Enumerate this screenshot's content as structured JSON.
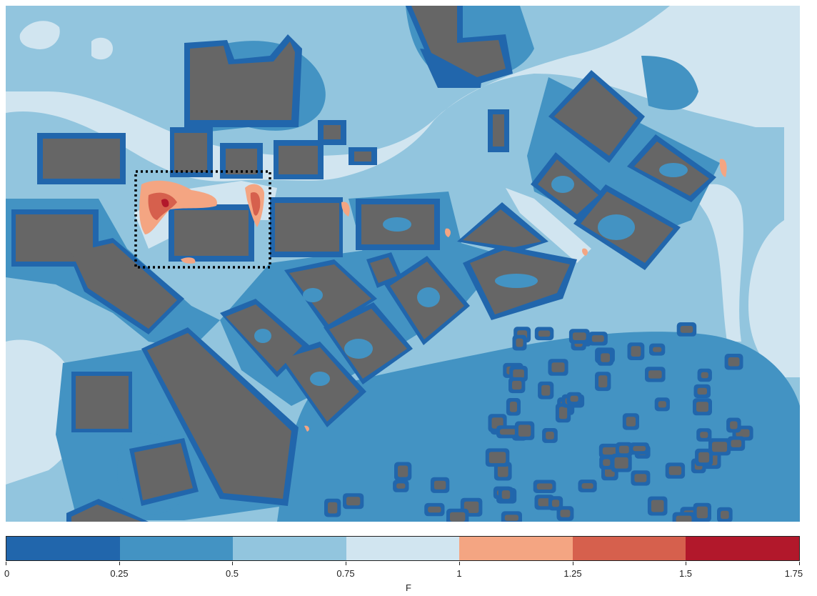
{
  "colorbar": {
    "label": "F",
    "ticks": [
      "0",
      "0.25",
      "0.5",
      "0.75",
      "1",
      "1.25",
      "1.5",
      "1.75"
    ],
    "range": [
      0,
      1.75
    ],
    "bins": [
      {
        "from": 0,
        "to": 0.25,
        "color": "#2166ac"
      },
      {
        "from": 0.25,
        "to": 0.5,
        "color": "#4393c3"
      },
      {
        "from": 0.5,
        "to": 0.75,
        "color": "#92c5de"
      },
      {
        "from": 0.75,
        "to": 1.0,
        "color": "#d1e5f0"
      },
      {
        "from": 1.0,
        "to": 1.25,
        "color": "#f4a582"
      },
      {
        "from": 1.25,
        "to": 1.5,
        "color": "#d6604d"
      },
      {
        "from": 1.5,
        "to": 1.75,
        "color": "#b2182b"
      }
    ]
  },
  "colors": {
    "building": "#666666",
    "background": "#92c5de",
    "highlight_box": "#000000"
  }
}
